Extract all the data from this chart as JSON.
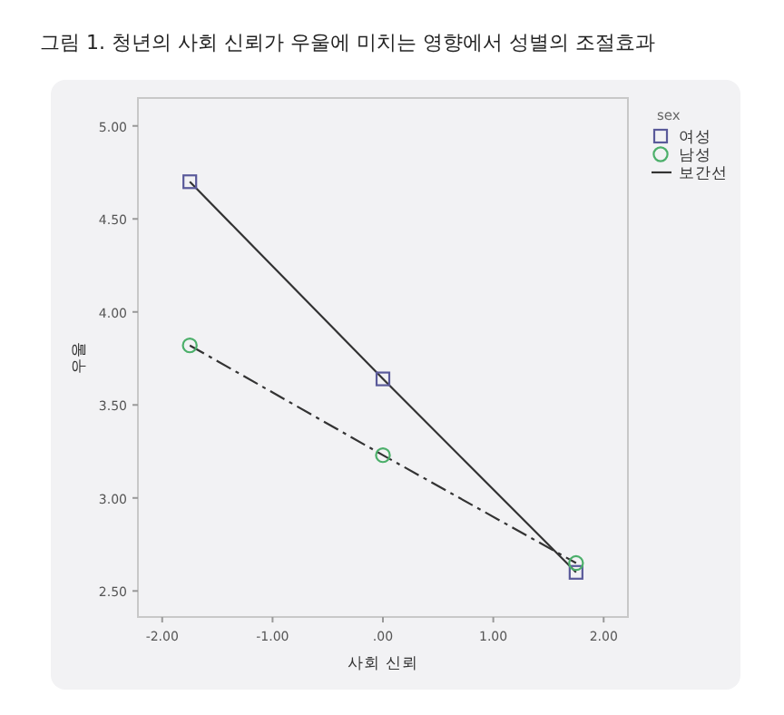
{
  "chart_data": {
    "type": "line",
    "title": "그림 1. 청년의 사회 신뢰가 우울에 미치는 영향에서 성별의 조절효과",
    "xlabel": "사회 신뢰",
    "ylabel": "우울",
    "legend_title": "sex",
    "legend": "right",
    "grid": false,
    "x": [
      -1.75,
      0,
      1.75
    ],
    "xlim": [
      -2.22,
      2.22
    ],
    "xticks": [
      {
        "value": -2,
        "label": "-2.00"
      },
      {
        "value": -1,
        "label": "-1.00"
      },
      {
        "value": 0,
        "label": ".00"
      },
      {
        "value": 1,
        "label": "1.00"
      },
      {
        "value": 2,
        "label": "2.00"
      }
    ],
    "ylim": [
      2.36,
      5.15
    ],
    "yticks": [
      {
        "value": 2.5,
        "label": "2.50"
      },
      {
        "value": 3,
        "label": "3.00"
      },
      {
        "value": 3.5,
        "label": "3.50"
      },
      {
        "value": 4,
        "label": "4.00"
      },
      {
        "value": 4.5,
        "label": "4.50"
      },
      {
        "value": 5,
        "label": "5.00"
      }
    ],
    "series": [
      {
        "name": "여성",
        "color": "#5a5a9a",
        "marker": "square",
        "line_style": "solid",
        "values": [
          4.7,
          3.64,
          2.6
        ]
      },
      {
        "name": "남성",
        "color": "#4caf6a",
        "marker": "circle",
        "line_style": "dashed",
        "values": [
          3.82,
          3.23,
          2.65
        ]
      }
    ],
    "annotations": [
      "보간선"
    ]
  }
}
